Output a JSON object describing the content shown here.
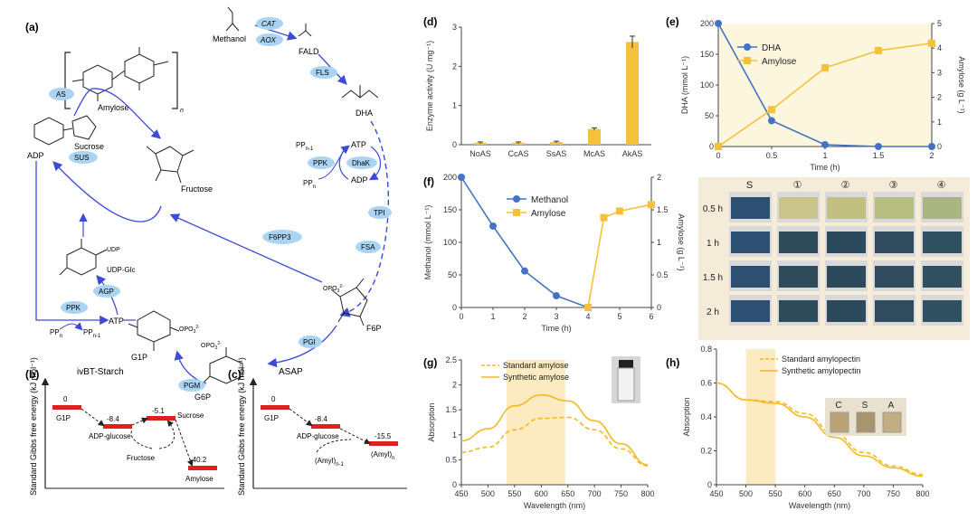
{
  "panels": {
    "a": "(a)",
    "b": "(b)",
    "c": "(c)",
    "d": "(d)",
    "e": "(e)",
    "f": "(f)",
    "g": "(g)",
    "h": "(h)"
  },
  "pathway": {
    "amylose": "Amylose",
    "n_subscript": "n",
    "methanol": "Methanol",
    "fald": "FALD",
    "dha": "DHA",
    "sucrose": "Sucrose",
    "fructose": "Fructose",
    "adp": "ADP",
    "atp": "ATP",
    "udp_glc": "UDP-Glc",
    "udp": "UDP",
    "g1p": "G1P",
    "g6p": "G6P",
    "f6p": "F6P",
    "pp_n1": "PP",
    "pp_n": "PP",
    "sub_n1": "n-1",
    "sub_n": "n",
    "phosphate": "OPO",
    "enzymes": {
      "cat": "CAT",
      "aox": "AOX",
      "fls": "FLS",
      "as": "AS",
      "sus": "SUS",
      "ppk": "PPK",
      "dhak": "DhaK",
      "tpi": "TPI",
      "fsa": "FSA",
      "f6pp3": "F6PP3",
      "agp": "AGP",
      "ppk2": "PPK",
      "pgi": "PGI",
      "pgm": "PGM"
    },
    "colors": {
      "enzyme_fill": "#aad4f2",
      "arrow": "#3b4bd8",
      "arrow_light": "#5a6be0"
    }
  },
  "energy_b": {
    "title": "ivBT-Starch",
    "ylabel": "Standard Gibbs free energy (kJ mol⁻¹)",
    "levels": [
      {
        "label": "G1P",
        "value": "0"
      },
      {
        "label": "ADP-glucose",
        "value": "-8.4"
      },
      {
        "label": "Sucrose",
        "value": "-5.1"
      },
      {
        "label": "Fructose",
        "value": ""
      },
      {
        "label": "Amylose",
        "value": "-40.2"
      }
    ],
    "bar_color": "#e02020"
  },
  "energy_c": {
    "title": "ASAP",
    "ylabel": "Standard Gibbs free energy (kJ mol⁻¹)",
    "levels": [
      {
        "label": "G1P",
        "value": "0"
      },
      {
        "label": "ADP-glucose",
        "value": "-8.4"
      },
      {
        "label": "(Amyl)",
        "value": "-15.5"
      },
      {
        "label": "(Amyl)",
        "value": ""
      }
    ],
    "subs": {
      "amyl_n": "n",
      "amyl_n1": "n-1"
    }
  },
  "chart_data": [
    {
      "id": "d",
      "type": "bar",
      "categories": [
        "NoAS",
        "CcAS",
        "SsAS",
        "McAS",
        "AkAS"
      ],
      "values": [
        0.05,
        0.05,
        0.07,
        0.4,
        2.62
      ],
      "errors": [
        0.02,
        0.02,
        0.02,
        0.03,
        0.15
      ],
      "ylabel": "Enzyme activity (U mg⁻¹)",
      "ylim": [
        0,
        3
      ],
      "yticks": [
        "0",
        "1",
        "2",
        "3"
      ],
      "color": "#f5c13a"
    },
    {
      "id": "e",
      "type": "line",
      "x": [
        0,
        0.5,
        1,
        1.5,
        2
      ],
      "xticks": [
        "0",
        "0.5",
        "1",
        "1.5",
        "2"
      ],
      "xlabel": "Time (h)",
      "ylabel": "DHA (mmol L⁻¹)",
      "y2label": "Amylose (g L⁻¹)",
      "ylim": [
        0,
        200
      ],
      "y2lim": [
        0,
        5
      ],
      "yticks": [
        "0",
        "50",
        "100",
        "150",
        "200"
      ],
      "y2ticks": [
        "0",
        "1",
        "2",
        "3",
        "4",
        "5"
      ],
      "series": [
        {
          "name": "DHA",
          "axis": "left",
          "values": [
            200,
            42,
            3,
            0,
            0
          ],
          "color": "#4472c4",
          "marker": "circle"
        },
        {
          "name": "Amylose",
          "axis": "right",
          "values": [
            0,
            1.5,
            3.2,
            3.9,
            4.2
          ],
          "color": "#f5c13a",
          "marker": "square"
        }
      ],
      "background": "#fdf6df"
    },
    {
      "id": "f",
      "type": "line",
      "x": [
        0,
        1,
        2,
        3,
        4,
        4.5,
        5,
        6
      ],
      "xticks": [
        "0",
        "1",
        "2",
        "3",
        "4",
        "5",
        "6"
      ],
      "xlabel": "Time (h)",
      "ylabel": "Methanol (mmol L⁻¹)",
      "y2label": "Amylose (g L⁻¹)",
      "ylim": [
        0,
        200
      ],
      "y2lim": [
        0,
        2
      ],
      "yticks": [
        "0",
        "50",
        "100",
        "150",
        "200"
      ],
      "y2ticks": [
        "0",
        "0.5",
        "1",
        "1.5",
        "2"
      ],
      "series": [
        {
          "name": "Methanol",
          "axis": "left",
          "x": [
            0,
            1,
            2,
            3,
            4
          ],
          "values": [
            200,
            125,
            56,
            18,
            0
          ],
          "color": "#4472c4",
          "marker": "circle"
        },
        {
          "name": "Amylose",
          "axis": "right",
          "x": [
            4,
            4.5,
            5,
            6
          ],
          "values": [
            0,
            1.38,
            1.48,
            1.58
          ],
          "color": "#f5c13a",
          "marker": "square"
        }
      ]
    },
    {
      "id": "g",
      "type": "line",
      "x": [
        450,
        500,
        550,
        600,
        650,
        700,
        750,
        800
      ],
      "xticks": [
        "450",
        "500",
        "550",
        "600",
        "650",
        "700",
        "750",
        "800"
      ],
      "xlabel": "Wavelength (nm)",
      "ylabel": "Absorption",
      "ylim": [
        0,
        2.5
      ],
      "yticks": [
        "0",
        "0.5",
        "1",
        "1.5",
        "2",
        "2.5"
      ],
      "series": [
        {
          "name": "Standard amylose",
          "values": [
            0.65,
            0.75,
            1.1,
            1.33,
            1.35,
            1.1,
            0.72,
            0.38
          ],
          "style": "dashed",
          "color": "#f5b820"
        },
        {
          "name": "Synthetic amylose",
          "values": [
            0.88,
            1.12,
            1.58,
            1.8,
            1.68,
            1.28,
            0.82,
            0.4
          ],
          "style": "solid",
          "color": "#f5b820"
        }
      ],
      "highlight": [
        535,
        645
      ]
    },
    {
      "id": "h",
      "type": "line",
      "x": [
        450,
        500,
        550,
        600,
        650,
        700,
        750,
        800
      ],
      "xticks": [
        "450",
        "500",
        "550",
        "600",
        "650",
        "700",
        "750",
        "800"
      ],
      "xlabel": "Wavelength (nm)",
      "ylabel": "Absorption",
      "ylim": [
        0,
        0.8
      ],
      "yticks": [
        "0",
        "0.2",
        "0.4",
        "0.6",
        "0.8"
      ],
      "series": [
        {
          "name": "Standard amylopectin",
          "values": [
            0.6,
            0.5,
            0.49,
            0.42,
            0.3,
            0.19,
            0.11,
            0.06
          ],
          "style": "dashed",
          "color": "#f5b820"
        },
        {
          "name": "Synthetic amylopectin",
          "values": [
            0.6,
            0.5,
            0.48,
            0.4,
            0.28,
            0.17,
            0.1,
            0.05
          ],
          "style": "solid",
          "color": "#f5b820"
        }
      ],
      "highlight": [
        500,
        550
      ],
      "inset_labels": [
        "C",
        "S",
        "A"
      ]
    }
  ],
  "photo_grid": {
    "columns": [
      "S",
      "①",
      "②",
      "③",
      "④"
    ],
    "rows": [
      "0.5 h",
      "1 h",
      "1.5 h",
      "2 h"
    ]
  }
}
